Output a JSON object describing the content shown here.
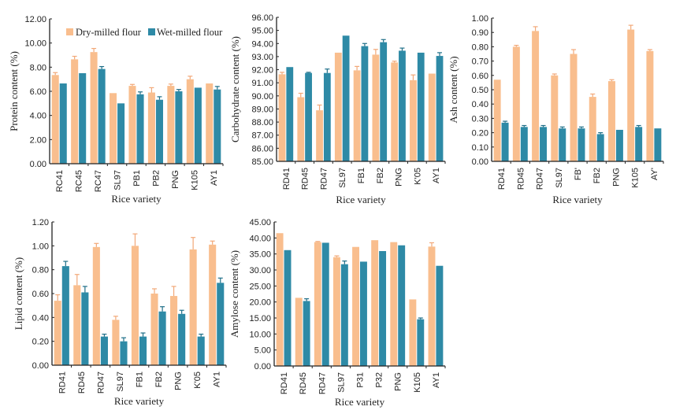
{
  "legend": {
    "series": [
      {
        "name": "Dry-milled flour",
        "color": "#F9BE8E"
      },
      {
        "name": "Wet-milled flour",
        "color": "#2E8AA6"
      }
    ]
  },
  "chart_data": [
    {
      "id": "protein",
      "type": "bar",
      "title": "",
      "xlabel": "Rice variety",
      "ylabel": "Protein content (%)",
      "ylim": [
        0,
        12
      ],
      "yticks": [
        "0.00",
        "2.00",
        "4.00",
        "6.00",
        "8.00",
        "10.00",
        "12.00"
      ],
      "categories": [
        "RC41",
        "RC45",
        "RC47",
        "SL97",
        "PB1",
        "PB2",
        "PNG",
        "K105",
        "AY1"
      ],
      "series": [
        {
          "name": "Dry-milled flour",
          "values": [
            7.35,
            8.65,
            9.25,
            5.85,
            6.45,
            5.9,
            6.45,
            7.0,
            6.65
          ],
          "errors": [
            0.2,
            0.25,
            0.3,
            0.0,
            0.12,
            0.4,
            0.15,
            0.25,
            0.0
          ]
        },
        {
          "name": "Wet-milled flour",
          "values": [
            6.65,
            7.5,
            7.85,
            5.0,
            5.75,
            5.3,
            6.0,
            6.3,
            6.15
          ],
          "errors": [
            0.0,
            0.0,
            0.2,
            0.0,
            0.2,
            0.25,
            0.15,
            0.0,
            0.25
          ]
        }
      ],
      "legend": "top-right"
    },
    {
      "id": "carbohydrate",
      "type": "bar",
      "title": "",
      "xlabel": "Rice variety",
      "ylabel": "Carbohydrate content (%)",
      "ylim": [
        85,
        96
      ],
      "yticks": [
        "85.00",
        "86.00",
        "87.00",
        "88.00",
        "89.00",
        "90.00",
        "91.00",
        "92.00",
        "93.00",
        "94.00",
        "95.00",
        "96.00"
      ],
      "categories": [
        "RD41",
        "RD45",
        "RD47",
        "SL97",
        "FB1",
        "FB2",
        "PNG",
        "K105",
        "AY1"
      ],
      "category_display": [
        "RD41",
        "RD45",
        "RD47",
        "SL97",
        "FB1",
        "FB2",
        "PNG",
        "K'05",
        "AY1"
      ],
      "series": [
        {
          "name": "Dry-milled flour",
          "values": [
            91.65,
            89.9,
            88.9,
            93.3,
            91.95,
            93.15,
            92.55,
            91.2,
            91.7
          ],
          "errors": [
            0.15,
            0.3,
            0.4,
            0.0,
            0.3,
            0.4,
            0.1,
            0.4,
            0.0
          ]
        },
        {
          "name": "Wet-milled flour",
          "values": [
            92.2,
            91.75,
            91.75,
            94.6,
            93.8,
            94.1,
            93.45,
            93.3,
            93.05
          ],
          "errors": [
            0.0,
            0.05,
            0.3,
            0.0,
            0.2,
            0.2,
            0.2,
            0.0,
            0.25
          ]
        }
      ],
      "legend": "none"
    },
    {
      "id": "ash",
      "type": "bar",
      "title": "",
      "xlabel": "Rice variety",
      "ylabel": "Ash content (%)",
      "ylim": [
        0,
        1
      ],
      "yticks": [
        "0.00",
        "0.10",
        "0.20",
        "0.30",
        "0.40",
        "0.50",
        "0.60",
        "0.70",
        "0.80",
        "0.90",
        "1.00"
      ],
      "categories": [
        "RD41",
        "RD45",
        "RD47",
        "SL97",
        "FB1",
        "FB2",
        "PNG",
        "K105",
        "AY1"
      ],
      "category_display": [
        "RD41",
        "RD45",
        "RD47",
        "SL97",
        "FB'",
        "FB2",
        "PNG",
        "K105",
        "AY'"
      ],
      "series": [
        {
          "name": "Dry-milled flour",
          "values": [
            0.57,
            0.8,
            0.91,
            0.6,
            0.75,
            0.45,
            0.56,
            0.92,
            0.77
          ],
          "errors": [
            0.0,
            0.01,
            0.03,
            0.01,
            0.03,
            0.02,
            0.01,
            0.03,
            0.01
          ]
        },
        {
          "name": "Wet-milled flour",
          "values": [
            0.27,
            0.24,
            0.24,
            0.23,
            0.23,
            0.19,
            0.22,
            0.24,
            0.23
          ],
          "errors": [
            0.01,
            0.01,
            0.01,
            0.01,
            0.01,
            0.01,
            0.0,
            0.01,
            0.0
          ]
        }
      ],
      "legend": "none"
    },
    {
      "id": "lipid",
      "type": "bar",
      "title": "",
      "xlabel": "Rice variety",
      "ylabel": "Lipid content (%)",
      "ylim": [
        0,
        1.2
      ],
      "yticks": [
        "0.00",
        "0.20",
        "0.40",
        "0.60",
        "0.80",
        "1.00",
        "1.20"
      ],
      "categories": [
        "RD41",
        "RD45",
        "RD47",
        "SL97",
        "FB1",
        "FB2",
        "PNG",
        "K105",
        "AY1"
      ],
      "category_display": [
        "RD41",
        "RD45",
        "RD47",
        "SL97",
        "FB1",
        "FB2",
        "PNG",
        "K'05",
        "AY1"
      ],
      "series": [
        {
          "name": "Dry-milled flour",
          "values": [
            0.54,
            0.67,
            0.99,
            0.38,
            1.0,
            0.6,
            0.58,
            0.97,
            1.01
          ],
          "errors": [
            0.05,
            0.09,
            0.03,
            0.03,
            0.1,
            0.04,
            0.08,
            0.1,
            0.03
          ]
        },
        {
          "name": "Wet-milled flour",
          "values": [
            0.83,
            0.61,
            0.24,
            0.2,
            0.24,
            0.45,
            0.43,
            0.24,
            0.69
          ],
          "errors": [
            0.04,
            0.05,
            0.02,
            0.03,
            0.03,
            0.04,
            0.03,
            0.02,
            0.04
          ]
        }
      ],
      "legend": "none"
    },
    {
      "id": "amylose",
      "type": "bar",
      "title": "",
      "xlabel": "Rice variety",
      "ylabel": "Amylose content (%)",
      "ylim": [
        0,
        45
      ],
      "yticks": [
        "0.00",
        "5.00",
        "10.00",
        "15.00",
        "20.00",
        "25.00",
        "30.00",
        "35.00",
        "40.00",
        "45.00"
      ],
      "categories": [
        "RD41",
        "RD45",
        "RD47",
        "SL97",
        "PB1",
        "PB2",
        "PNG",
        "K105",
        "AY1"
      ],
      "category_display": [
        "RD41",
        "RD45",
        "RD47",
        "SL97",
        "P31",
        "P32",
        "PNG",
        "K105",
        "AY1"
      ],
      "series": [
        {
          "name": "Dry-milled flour",
          "values": [
            41.5,
            21.3,
            38.7,
            34.0,
            37.2,
            39.3,
            38.7,
            20.8,
            37.3
          ],
          "errors": [
            0.0,
            0.0,
            0.2,
            0.4,
            0.0,
            0.0,
            0.0,
            0.0,
            1.2
          ]
        },
        {
          "name": "Wet-milled flour",
          "values": [
            36.2,
            20.3,
            38.5,
            31.8,
            32.6,
            35.9,
            37.7,
            14.6,
            31.3
          ],
          "errors": [
            0.0,
            0.7,
            0.0,
            1.0,
            0.0,
            0.0,
            0.0,
            0.4,
            0.0
          ]
        }
      ],
      "legend": "none"
    }
  ]
}
